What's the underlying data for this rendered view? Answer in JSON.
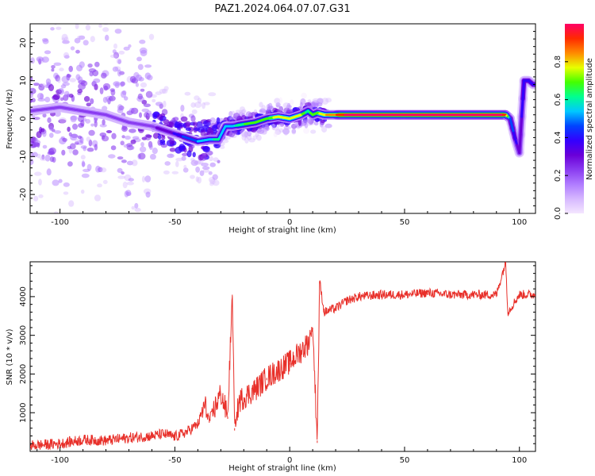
{
  "figure_title": "PAZ1.2024.064.07.07.G31",
  "colors": {
    "snr_line": "#e8302a",
    "colormap": [
      "#f4e6ff",
      "#d6b8ff",
      "#b07cff",
      "#8a3cf0",
      "#6a00d8",
      "#3300ff",
      "#0044ff",
      "#00c8ff",
      "#00ff90",
      "#44ff00",
      "#e8ff00",
      "#ff8a00",
      "#ff2a00",
      "#ff0066"
    ]
  },
  "chart_data": [
    {
      "type": "heatmap",
      "title": "",
      "xlabel": "Height of straight line (km)",
      "ylabel": "Frequency (Hz)",
      "xlim": [
        -113,
        107
      ],
      "ylim": [
        -25,
        25
      ],
      "xticks": [
        -100,
        -50,
        0,
        50,
        100
      ],
      "yticks": [
        -20,
        -10,
        0,
        10,
        20
      ],
      "colorbar": {
        "label": "Normalized spectral amplitude",
        "range": [
          0,
          1
        ],
        "ticks": [
          "0.0",
          "0.2",
          "0.4",
          "0.6",
          "0.8"
        ]
      },
      "ridge": {
        "height_km": [
          -113,
          -100,
          -90,
          -80,
          -70,
          -60,
          -55,
          -50,
          -45,
          -40,
          -35,
          -31,
          -28,
          -25,
          -20,
          -15,
          -10,
          -5,
          0,
          5,
          8,
          10,
          12,
          15,
          20,
          22,
          30,
          50,
          70,
          90,
          94,
          96,
          98,
          100,
          102,
          104,
          106
        ],
        "frequency_hz": [
          2,
          3,
          2,
          1,
          -1,
          -2,
          -3,
          -4,
          -5,
          -6,
          -5.5,
          -5.5,
          -2,
          -2,
          -1.5,
          -1,
          0,
          0.5,
          0,
          1,
          2,
          1,
          1.5,
          1,
          1,
          1,
          1,
          1,
          1,
          1,
          1,
          0,
          -5,
          -9,
          10,
          10,
          9
        ],
        "amplitude": [
          0.2,
          0.2,
          0.2,
          0.2,
          0.2,
          0.25,
          0.3,
          0.35,
          0.45,
          0.5,
          0.55,
          0.6,
          0.5,
          0.55,
          0.65,
          0.7,
          0.7,
          0.75,
          0.8,
          0.75,
          0.6,
          0.7,
          0.7,
          0.8,
          0.85,
          0.95,
          1.0,
          1.0,
          1.0,
          1.0,
          0.95,
          0.5,
          0.4,
          0.3,
          0.4,
          0.4,
          0.4
        ]
      }
    },
    {
      "type": "line",
      "title": "",
      "xlabel": "Height of straight line (km)",
      "ylabel": "SNR (10 * v/v)",
      "xlim": [
        -113,
        107
      ],
      "ylim": [
        0,
        4900
      ],
      "xticks": [
        -100,
        -50,
        0,
        50,
        100
      ],
      "yticks": [
        1000,
        2000,
        3000,
        4000
      ],
      "series": [
        {
          "x": [
            -113,
            -100,
            -90,
            -80,
            -70,
            -60,
            -55,
            -50,
            -45,
            -40,
            -37,
            -35,
            -30,
            -27,
            -25,
            -24,
            -22,
            -20,
            -15,
            -10,
            -5,
            0,
            5,
            8,
            10,
            12,
            13,
            15,
            20,
            25,
            30,
            40,
            50,
            60,
            70,
            80,
            90,
            94,
            95,
            100,
            107
          ],
          "y": [
            150,
            200,
            300,
            280,
            350,
            400,
            450,
            380,
            500,
            700,
            1200,
            800,
            1500,
            900,
            4050,
            600,
            1300,
            1400,
            1600,
            1900,
            2100,
            2300,
            2600,
            2800,
            3200,
            280,
            4400,
            3600,
            3700,
            3900,
            4000,
            4050,
            4050,
            4100,
            4050,
            4050,
            4050,
            4900,
            3600,
            4050,
            4050
          ]
        }
      ]
    }
  ]
}
